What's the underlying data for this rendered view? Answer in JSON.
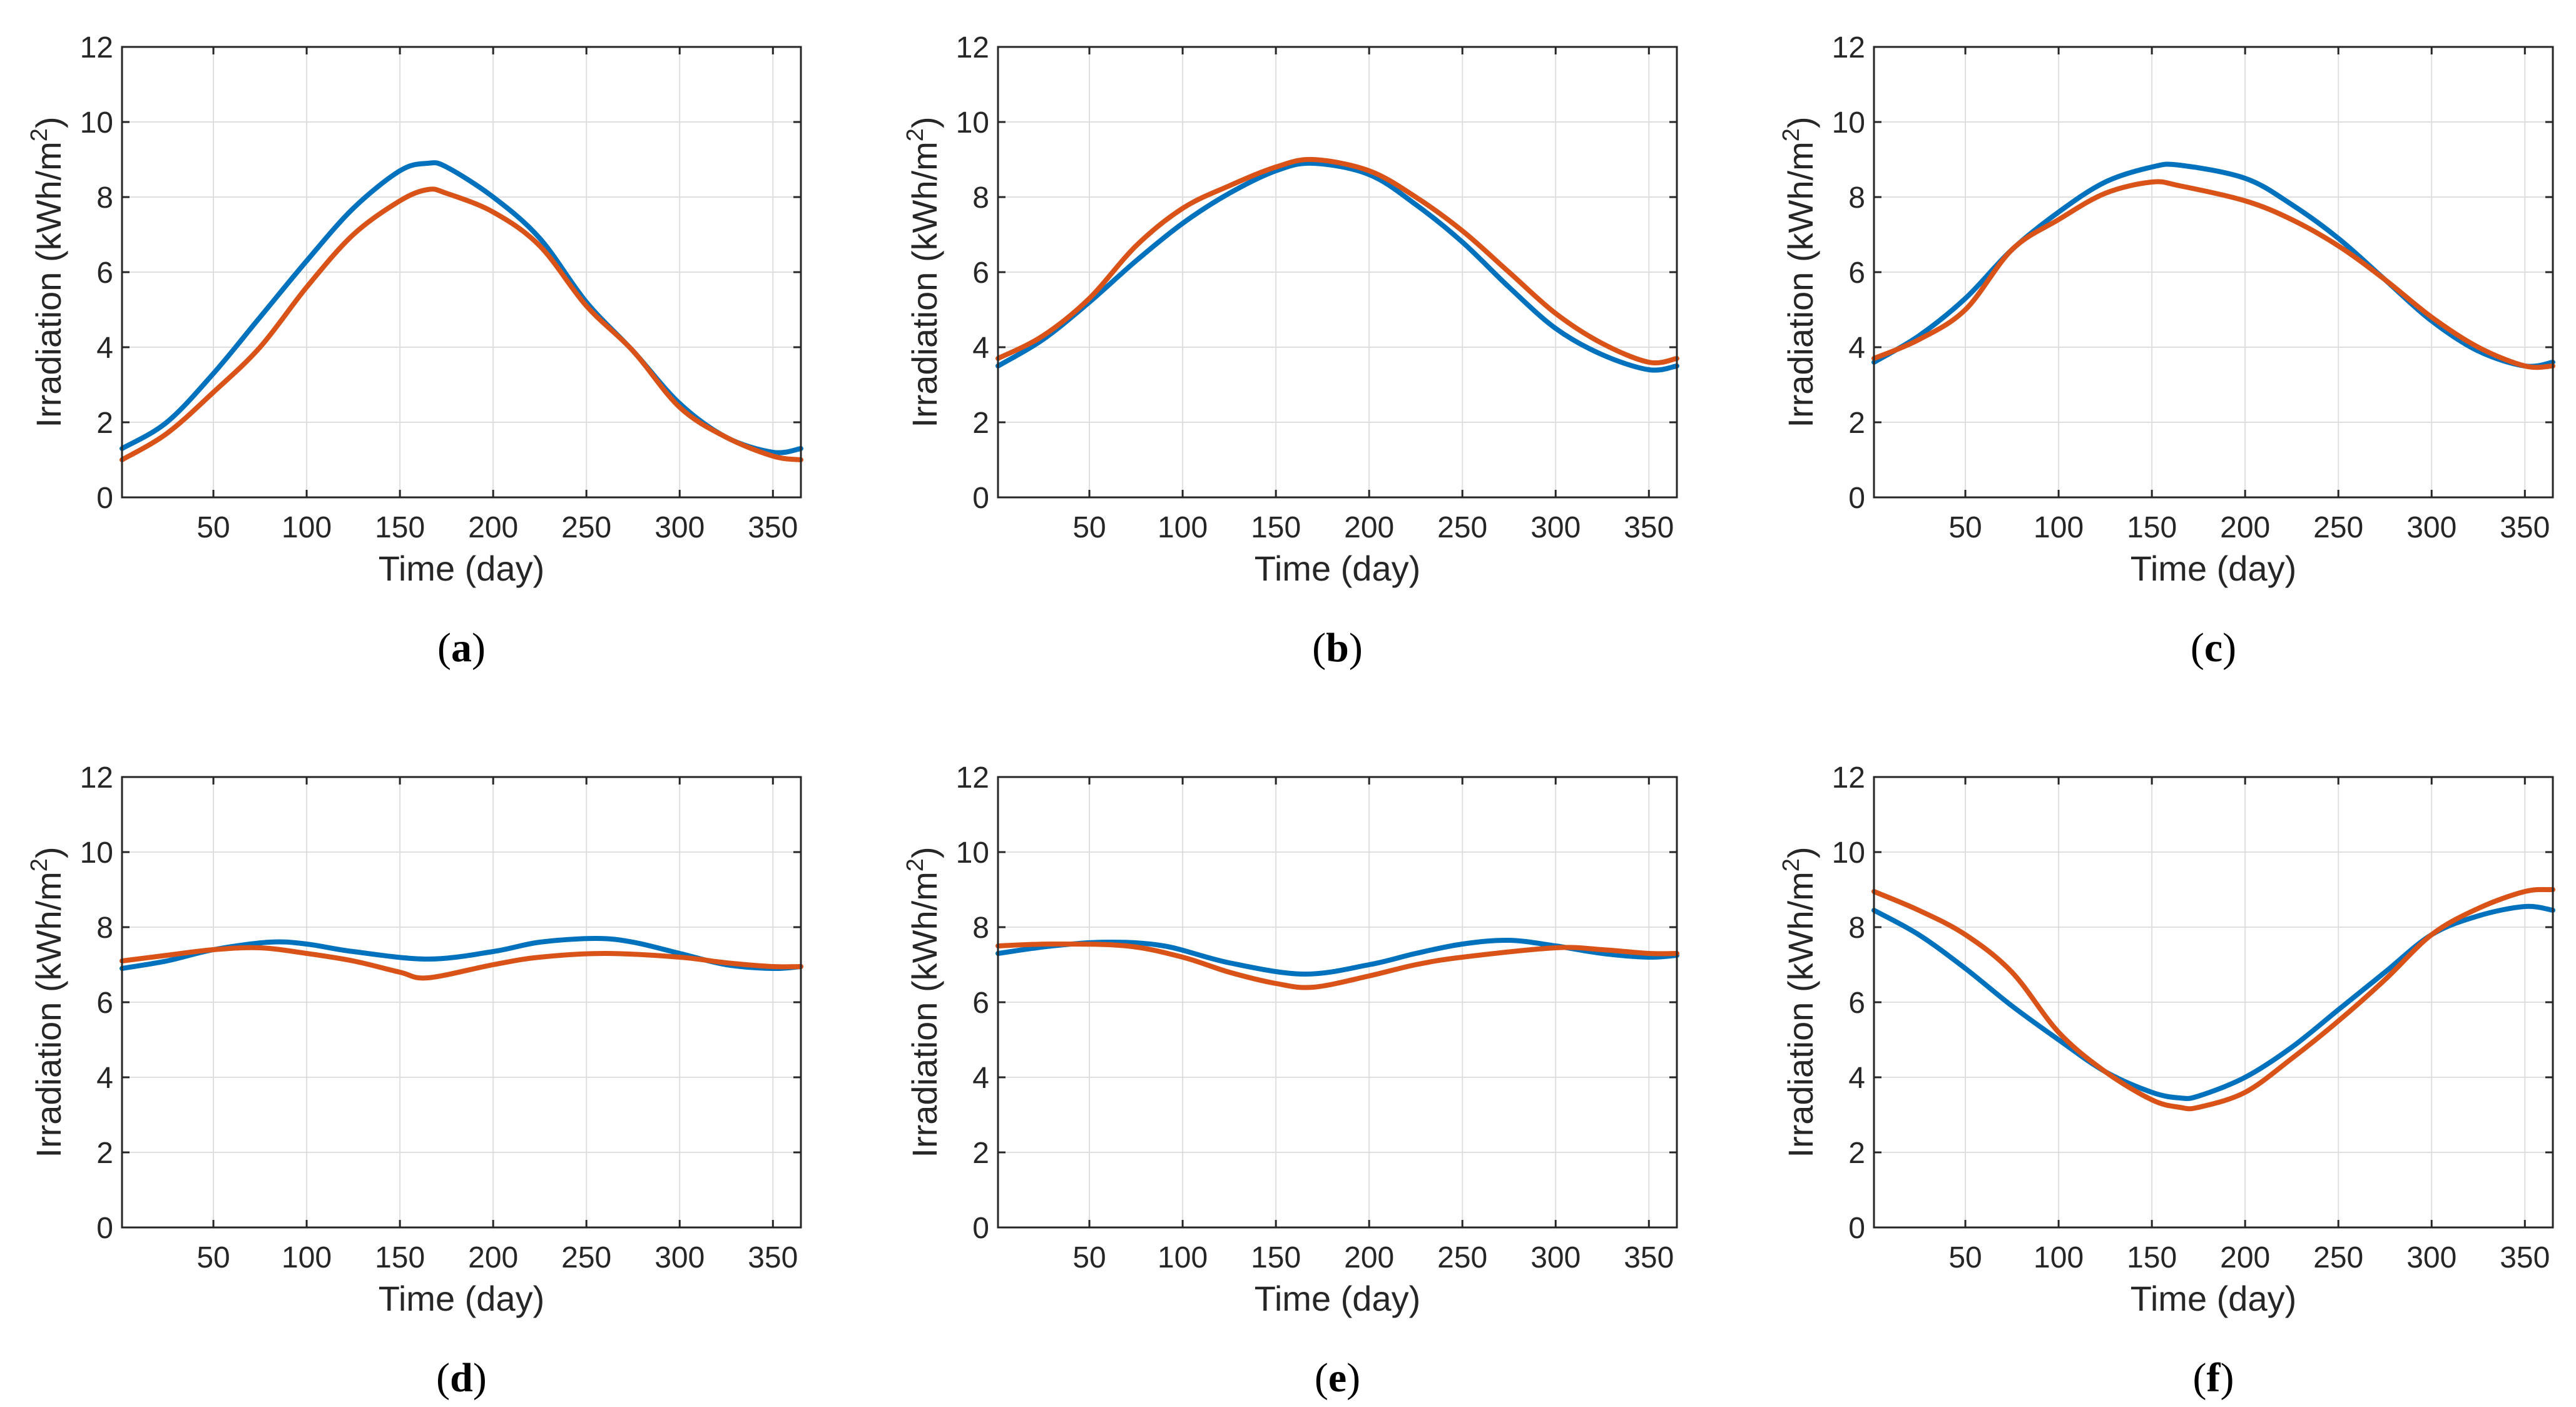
{
  "figure": {
    "colors": {
      "series_1": "#0072BD",
      "series_2": "#D95319"
    }
  },
  "chart_data": [
    {
      "type": "line",
      "panel": "a",
      "caption_open": "(",
      "caption_letter": "a",
      "caption_close": ")",
      "xlabel": "Time (day)",
      "ylabel_main": "Irradiation (kWh/m",
      "ylabel_sup": "2",
      "ylabel_close": ")",
      "xlim": [
        1,
        365
      ],
      "ylim": [
        0,
        12
      ],
      "xticks": [
        50,
        100,
        150,
        200,
        250,
        300,
        350
      ],
      "yticks": [
        0,
        2,
        4,
        6,
        8,
        10,
        12
      ],
      "grid": true,
      "series": [
        {
          "name": "series 1",
          "x": [
            1,
            25,
            50,
            75,
            100,
            125,
            150,
            165,
            175,
            200,
            225,
            250,
            275,
            300,
            325,
            350,
            365
          ],
          "values": [
            1.3,
            2.0,
            3.3,
            4.8,
            6.3,
            7.7,
            8.7,
            8.9,
            8.8,
            8.0,
            6.9,
            5.2,
            3.9,
            2.5,
            1.6,
            1.2,
            1.3
          ]
        },
        {
          "name": "series 2",
          "x": [
            1,
            25,
            50,
            75,
            100,
            125,
            150,
            165,
            175,
            200,
            225,
            250,
            275,
            300,
            325,
            350,
            365
          ],
          "values": [
            1.0,
            1.7,
            2.8,
            4.0,
            5.6,
            7.0,
            7.9,
            8.2,
            8.1,
            7.6,
            6.7,
            5.1,
            3.9,
            2.4,
            1.6,
            1.1,
            1.0
          ]
        }
      ]
    },
    {
      "type": "line",
      "panel": "b",
      "caption_open": "(",
      "caption_letter": "b",
      "caption_close": ")",
      "xlabel": "Time (day)",
      "ylabel_main": "Irradiation (kWh/m",
      "ylabel_sup": "2",
      "ylabel_close": ")",
      "xlim": [
        1,
        365
      ],
      "ylim": [
        0,
        12
      ],
      "xticks": [
        50,
        100,
        150,
        200,
        250,
        300,
        350
      ],
      "yticks": [
        0,
        2,
        4,
        6,
        8,
        10,
        12
      ],
      "grid": true,
      "series": [
        {
          "name": "series 1",
          "x": [
            1,
            25,
            50,
            75,
            100,
            125,
            150,
            170,
            200,
            225,
            250,
            275,
            300,
            325,
            350,
            365
          ],
          "values": [
            3.5,
            4.2,
            5.2,
            6.3,
            7.3,
            8.1,
            8.7,
            8.9,
            8.6,
            7.8,
            6.8,
            5.6,
            4.5,
            3.8,
            3.4,
            3.5
          ]
        },
        {
          "name": "series 2",
          "x": [
            1,
            25,
            50,
            75,
            100,
            125,
            150,
            170,
            200,
            225,
            250,
            275,
            300,
            325,
            350,
            365
          ],
          "values": [
            3.7,
            4.3,
            5.3,
            6.7,
            7.7,
            8.3,
            8.8,
            9.0,
            8.7,
            8.0,
            7.1,
            6.0,
            4.9,
            4.1,
            3.6,
            3.7
          ]
        }
      ]
    },
    {
      "type": "line",
      "panel": "c",
      "caption_open": "(",
      "caption_letter": "c",
      "caption_close": ")",
      "xlabel": "Time (day)",
      "ylabel_main": "Irradiation (kWh/m",
      "ylabel_sup": "2",
      "ylabel_close": ")",
      "xlim": [
        1,
        365
      ],
      "ylim": [
        0,
        12
      ],
      "xticks": [
        50,
        100,
        150,
        200,
        250,
        300,
        350
      ],
      "yticks": [
        0,
        2,
        4,
        6,
        8,
        10,
        12
      ],
      "grid": true,
      "series": [
        {
          "name": "series 1",
          "x": [
            1,
            25,
            50,
            75,
            100,
            125,
            150,
            165,
            200,
            225,
            250,
            275,
            300,
            325,
            350,
            365
          ],
          "values": [
            3.6,
            4.3,
            5.3,
            6.6,
            7.6,
            8.4,
            8.8,
            8.85,
            8.5,
            7.8,
            6.9,
            5.8,
            4.7,
            3.9,
            3.5,
            3.6
          ]
        },
        {
          "name": "series 2",
          "x": [
            1,
            25,
            50,
            75,
            100,
            125,
            150,
            165,
            200,
            225,
            250,
            275,
            300,
            325,
            350,
            365
          ],
          "values": [
            3.7,
            4.2,
            5.0,
            6.6,
            7.4,
            8.1,
            8.4,
            8.3,
            7.9,
            7.4,
            6.7,
            5.8,
            4.8,
            4.0,
            3.5,
            3.5
          ]
        }
      ]
    },
    {
      "type": "line",
      "panel": "d",
      "caption_open": "(",
      "caption_letter": "d",
      "caption_close": ")",
      "xlabel": "Time (day)",
      "ylabel_main": "Irradiation (kWh/m",
      "ylabel_sup": "2",
      "ylabel_close": ")",
      "xlim": [
        1,
        365
      ],
      "ylim": [
        0,
        12
      ],
      "xticks": [
        50,
        100,
        150,
        200,
        250,
        300,
        350
      ],
      "yticks": [
        0,
        2,
        4,
        6,
        8,
        10,
        12
      ],
      "grid": true,
      "series": [
        {
          "name": "series 1",
          "x": [
            1,
            25,
            50,
            80,
            100,
            125,
            165,
            200,
            225,
            255,
            275,
            300,
            325,
            350,
            365
          ],
          "values": [
            6.9,
            7.1,
            7.4,
            7.6,
            7.55,
            7.35,
            7.15,
            7.35,
            7.6,
            7.7,
            7.6,
            7.3,
            7.0,
            6.9,
            6.95
          ]
        },
        {
          "name": "series 2",
          "x": [
            1,
            25,
            50,
            75,
            100,
            125,
            150,
            165,
            200,
            225,
            260,
            300,
            325,
            350,
            365
          ],
          "values": [
            7.1,
            7.25,
            7.4,
            7.45,
            7.3,
            7.1,
            6.8,
            6.65,
            7.0,
            7.2,
            7.3,
            7.2,
            7.05,
            6.95,
            6.95
          ]
        }
      ]
    },
    {
      "type": "line",
      "panel": "e",
      "caption_open": "(",
      "caption_letter": "e",
      "caption_close": ")",
      "xlabel": "Time (day)",
      "ylabel_main": "Irradiation (kWh/m",
      "ylabel_sup": "2",
      "ylabel_close": ")",
      "xlim": [
        1,
        365
      ],
      "ylim": [
        0,
        12
      ],
      "xticks": [
        50,
        100,
        150,
        200,
        250,
        300,
        350
      ],
      "yticks": [
        0,
        2,
        4,
        6,
        8,
        10,
        12
      ],
      "grid": true,
      "series": [
        {
          "name": "series 1",
          "x": [
            1,
            30,
            60,
            90,
            125,
            165,
            200,
            225,
            250,
            275,
            300,
            325,
            350,
            365
          ],
          "values": [
            7.3,
            7.5,
            7.6,
            7.5,
            7.05,
            6.75,
            7.0,
            7.3,
            7.55,
            7.65,
            7.5,
            7.3,
            7.2,
            7.25
          ]
        },
        {
          "name": "series 2",
          "x": [
            1,
            30,
            70,
            100,
            125,
            150,
            170,
            200,
            225,
            250,
            300,
            325,
            350,
            365
          ],
          "values": [
            7.5,
            7.55,
            7.5,
            7.2,
            6.8,
            6.5,
            6.4,
            6.7,
            7.0,
            7.2,
            7.45,
            7.4,
            7.3,
            7.3
          ]
        }
      ]
    },
    {
      "type": "line",
      "panel": "f",
      "caption_open": "(",
      "caption_letter": "f",
      "caption_close": ")",
      "xlabel": "Time (day)",
      "ylabel_main": "Irradiation (kWh/m",
      "ylabel_sup": "2",
      "ylabel_close": ")",
      "xlim": [
        1,
        365
      ],
      "ylim": [
        0,
        12
      ],
      "xticks": [
        50,
        100,
        150,
        200,
        250,
        300,
        350
      ],
      "yticks": [
        0,
        2,
        4,
        6,
        8,
        10,
        12
      ],
      "grid": true,
      "series": [
        {
          "name": "series 1",
          "x": [
            1,
            25,
            50,
            75,
            100,
            125,
            150,
            165,
            175,
            200,
            225,
            250,
            275,
            300,
            325,
            350,
            365
          ],
          "values": [
            8.45,
            7.8,
            6.9,
            5.9,
            5.0,
            4.15,
            3.6,
            3.45,
            3.5,
            4.0,
            4.8,
            5.8,
            6.8,
            7.8,
            8.3,
            8.55,
            8.45
          ]
        },
        {
          "name": "series 2",
          "x": [
            1,
            25,
            50,
            75,
            100,
            125,
            150,
            165,
            175,
            200,
            225,
            250,
            275,
            300,
            325,
            350,
            365
          ],
          "values": [
            8.95,
            8.45,
            7.8,
            6.8,
            5.2,
            4.15,
            3.4,
            3.2,
            3.2,
            3.6,
            4.5,
            5.5,
            6.6,
            7.8,
            8.5,
            8.95,
            9.0
          ]
        }
      ]
    }
  ]
}
